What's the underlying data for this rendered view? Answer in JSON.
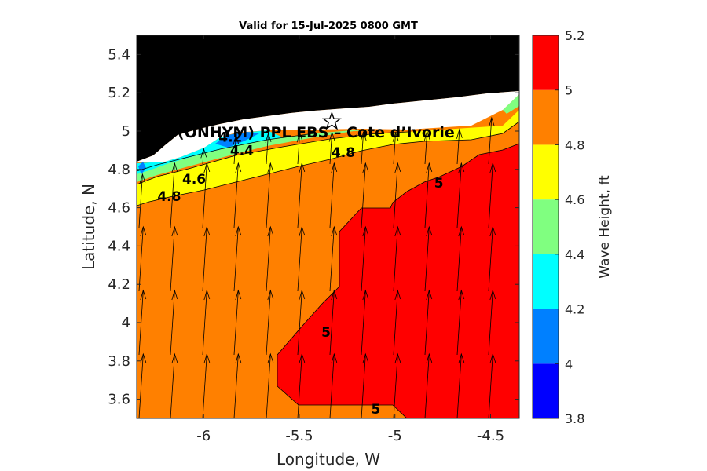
{
  "title": "Valid for 15-Jul-2025 0800 GMT",
  "station_label": "(ONHYM) PPL EBS  – Cote d’Ivorie",
  "station_location": {
    "lon": -5.33,
    "lat": 5.05
  },
  "map": {
    "xlabel": "Longitude, W",
    "ylabel": "Latitude, N",
    "xlim": [
      -6.35,
      -4.35
    ],
    "ylim": [
      3.5,
      5.5
    ],
    "xticks": [
      -6,
      -5.5,
      -5,
      -4.5
    ],
    "xtick_labels": [
      "-6",
      "-5.5",
      "-5",
      "-4.5"
    ],
    "yticks": [
      3.6,
      3.8,
      4.0,
      4.2,
      4.4,
      4.6,
      4.8,
      5.0,
      5.2,
      5.4
    ],
    "ytick_labels": [
      "3.6",
      "3.8",
      "4",
      "4.2",
      "4.4",
      "4.6",
      "4.8",
      "5",
      "5.2",
      "5.4"
    ]
  },
  "colorbar": {
    "label": "Wave Height, ft",
    "levels": [
      3.8,
      4.0,
      4.2,
      4.4,
      4.6,
      4.8,
      5.0,
      5.2
    ],
    "tick_labels": [
      "3.8",
      "4",
      "4.2",
      "4.4",
      "4.6",
      "4.8",
      "5",
      "5.2"
    ],
    "colors": [
      "#0000ff",
      "#0080ff",
      "#00ffff",
      "#80ff80",
      "#ffff00",
      "#ff8000",
      "#ff0000"
    ]
  },
  "land_color": "#000000",
  "chart_data": {
    "type": "filled-contour map with wave-direction arrows",
    "variable": "Wave Height, ft",
    "contour_labels": [
      {
        "text": "4.2",
        "lon": -5.86,
        "lat": 4.97
      },
      {
        "text": "4.4",
        "lon": -5.8,
        "lat": 4.9
      },
      {
        "text": "4.6",
        "lon": -6.05,
        "lat": 4.75
      },
      {
        "text": "4.8",
        "lon": -6.18,
        "lat": 4.66
      },
      {
        "text": "4.8",
        "lon": -5.27,
        "lat": 4.89
      },
      {
        "text": "5",
        "lon": -4.77,
        "lat": 4.73
      },
      {
        "text": "5",
        "lon": -5.36,
        "lat": 3.95
      },
      {
        "text": "5",
        "lon": -5.1,
        "lat": 3.55
      }
    ],
    "wave_direction": "arrows pointing toward north (slightly NNE)"
  }
}
